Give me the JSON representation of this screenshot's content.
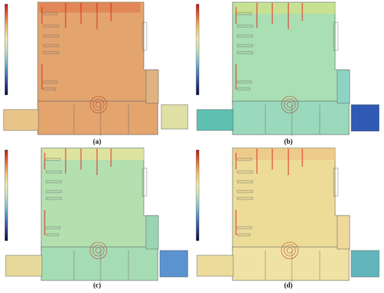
{
  "panels": [
    {
      "id": "a",
      "caption": "(a)",
      "colors": {
        "main": "#e3a46e",
        "right_wing": "#dfb27f",
        "left_annex": "#e9c489",
        "right_annex": "#dfe0a5",
        "north_glow": "#e07a4a"
      }
    },
    {
      "id": "b",
      "caption": "(b)",
      "colors": {
        "main": "#a9dfb2",
        "right_wing": "#8cd3c2",
        "left_annex": "#5ec0b0",
        "right_annex": "#2f59b4",
        "north_glow": "#cfe08a"
      }
    },
    {
      "id": "c",
      "caption": "(c)",
      "colors": {
        "main": "#b4e0b0",
        "right_wing": "#9ad5b3",
        "left_annex": "#e7d99a",
        "right_annex": "#5b93d1",
        "north_glow": "#e8e39a"
      }
    },
    {
      "id": "d",
      "caption": "(d)",
      "colors": {
        "main": "#ecdc98",
        "right_wing": "#eed89a",
        "left_annex": "#eddb9c",
        "right_annex": "#62b6bb",
        "north_glow": "#efc787"
      }
    }
  ],
  "legend_gradient": [
    "#c0181e",
    "#e8632e",
    "#f2c066",
    "#f5edb6",
    "#c8e6c0",
    "#87c5cf",
    "#4a84c3",
    "#2a3f8e",
    "#0b0c3a"
  ]
}
